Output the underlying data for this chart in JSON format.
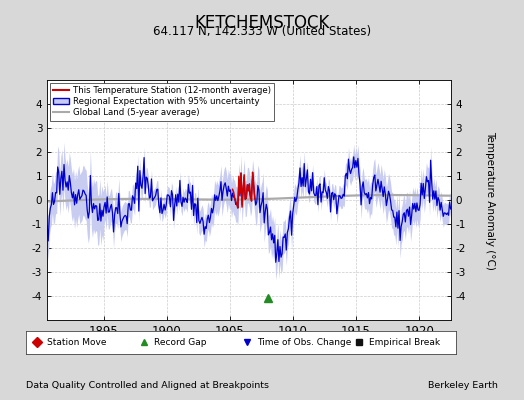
{
  "title": "KETCHEMSTOCK",
  "subtitle": "64.117 N, 142.333 W (United States)",
  "footer_left": "Data Quality Controlled and Aligned at Breakpoints",
  "footer_right": "Berkeley Earth",
  "year_start": 1890.5,
  "year_end": 1922.5,
  "ylim": [
    -5,
    5
  ],
  "yticks_left": [
    -4,
    -3,
    -2,
    -1,
    0,
    1,
    2,
    3,
    4
  ],
  "yticks_right": [
    -4,
    -3,
    -2,
    -1,
    0,
    1,
    2,
    3,
    4
  ],
  "ylabel": "Temperature Anomaly (°C)",
  "xticks": [
    1895,
    1900,
    1905,
    1910,
    1915,
    1920
  ],
  "background_color": "#d8d8d8",
  "plot_bg_color": "#ffffff",
  "regional_fill_color": "#c8ccf0",
  "regional_line_color": "#0000cc",
  "station_color": "#cc0000",
  "global_color": "#aaaaaa",
  "grid_color": "#cccccc",
  "marker_legend": [
    {
      "label": "Station Move",
      "color": "#cc0000",
      "marker": "D"
    },
    {
      "label": "Record Gap",
      "color": "#228B22",
      "marker": "^"
    },
    {
      "label": "Time of Obs. Change",
      "color": "#0000cc",
      "marker": "v"
    },
    {
      "label": "Empirical Break",
      "color": "#111111",
      "marker": "s"
    }
  ]
}
